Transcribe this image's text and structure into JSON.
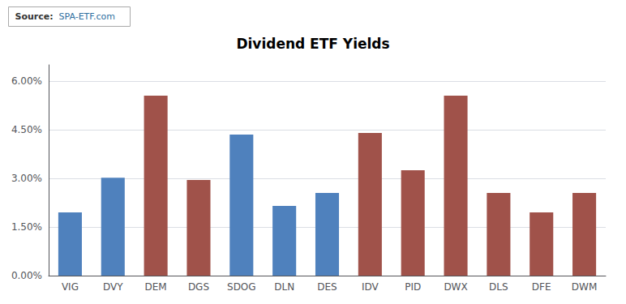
{
  "chart_data": {
    "type": "bar",
    "title": "Dividend ETF Yields",
    "annotations": [
      "Source:",
      "SPA-ETF.com"
    ],
    "categories": [
      "VIG",
      "DVY",
      "DEM",
      "DGS",
      "SDOG",
      "DLN",
      "DES",
      "IDV",
      "PID",
      "DWX",
      "DLS",
      "DFE",
      "DWM"
    ],
    "values": [
      0.0195,
      0.0302,
      0.0555,
      0.0295,
      0.0435,
      0.0215,
      0.0255,
      0.044,
      0.0325,
      0.0555,
      0.0255,
      0.0195,
      0.0255
    ],
    "colors": [
      "#4f81bd",
      "#4f81bd",
      "#a0524a",
      "#a0524a",
      "#4f81bd",
      "#4f81bd",
      "#4f81bd",
      "#a0524a",
      "#a0524a",
      "#a0524a",
      "#a0524a",
      "#a0524a",
      "#a0524a"
    ],
    "ylim": [
      0,
      0.065
    ],
    "yticks": [
      {
        "value": 0.0,
        "label": "0.00%"
      },
      {
        "value": 0.015,
        "label": "1.50%"
      },
      {
        "value": 0.03,
        "label": "3.00%"
      },
      {
        "value": 0.045,
        "label": "4.50%"
      },
      {
        "value": 0.06,
        "label": "6.00%"
      }
    ],
    "grid": true
  }
}
